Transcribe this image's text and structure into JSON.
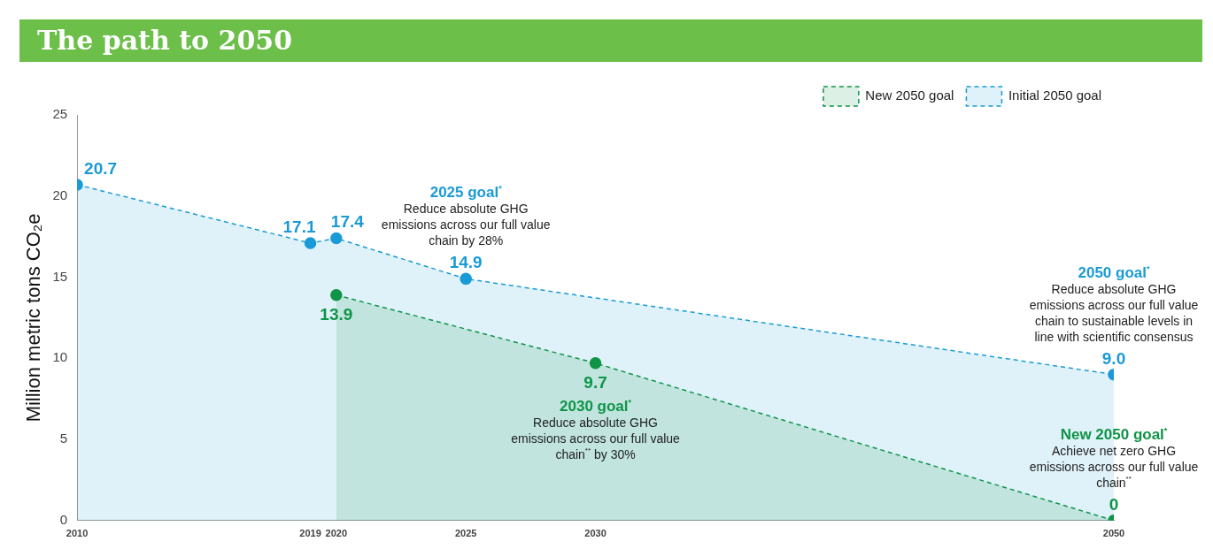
{
  "chart_data": {
    "type": "area",
    "title": "The path to 2050",
    "ylabel": "Million metric tons CO₂e",
    "xlim": [
      2010,
      2050
    ],
    "xticks": [
      2010,
      2019,
      2020,
      2025,
      2030,
      2050
    ],
    "ylim": [
      0,
      25
    ],
    "yticks": [
      0,
      5,
      10,
      15,
      20,
      25
    ],
    "series": [
      {
        "name": "Initial 2050 goal",
        "color": "#1a9ad6",
        "x": [
          2010,
          2019,
          2020,
          2025,
          2050
        ],
        "values": [
          20.7,
          17.1,
          17.4,
          14.9,
          9.0
        ],
        "value_labels": [
          "20.7",
          "17.1",
          "17.4",
          "14.9",
          "9.0"
        ]
      },
      {
        "name": "New 2050 goal",
        "color": "#0f9447",
        "x": [
          2020,
          2030,
          2050
        ],
        "values": [
          13.9,
          9.7,
          0
        ],
        "value_labels": [
          "13.9",
          "9.7",
          "0"
        ]
      }
    ],
    "annotations": [
      {
        "text": "2025 goal$^{*}$\nReduce absolute GHG emissions across our full value chain by 28%",
        "x": 2025,
        "y": 14.9
      },
      {
        "text": "2030 goal$^{*}$\nReduce absolute GHG emissions across our full value chain$^{**}$ by 30%",
        "x": 2030,
        "y": 9.7
      },
      {
        "text": "2050 goal$^{*}$\nReduce absolute GHG emissions across our full value chain to sustainable levels in line with scientific consensus",
        "x": 2050,
        "y": 9.0
      },
      {
        "text": "New 2050 goal$^{*}$\nAchieve net zero GHG emissions across our full value chain$^{**}$",
        "x": 2050,
        "y": 0
      }
    ],
    "grid": false,
    "legend": "top right",
    "marker": "circle",
    "line_style": "dashed"
  }
}
